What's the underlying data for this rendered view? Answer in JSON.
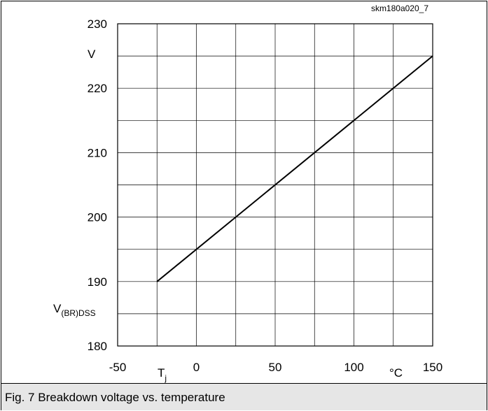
{
  "chart_data": {
    "type": "line",
    "figure_id": "skm180a020_7",
    "caption": "Fig. 7 Breakdown voltage vs. temperature",
    "x_ticks": [
      "-50",
      "0",
      "50",
      "100",
      "150"
    ],
    "y_ticks": [
      "180",
      "190",
      "200",
      "210",
      "220",
      "230"
    ],
    "x_label_main": "T",
    "x_label_sub": "j",
    "x_unit": "°C",
    "y_label_main": "V",
    "y_label_sub": "(BR)DSS",
    "y_unit": "V",
    "xlim": [
      -50,
      150
    ],
    "ylim": [
      180,
      230
    ],
    "x_grid_step": 25,
    "y_grid_step": 5,
    "grid": true,
    "series": [
      {
        "x": [
          -25,
          150
        ],
        "y": [
          190,
          225
        ]
      }
    ]
  }
}
